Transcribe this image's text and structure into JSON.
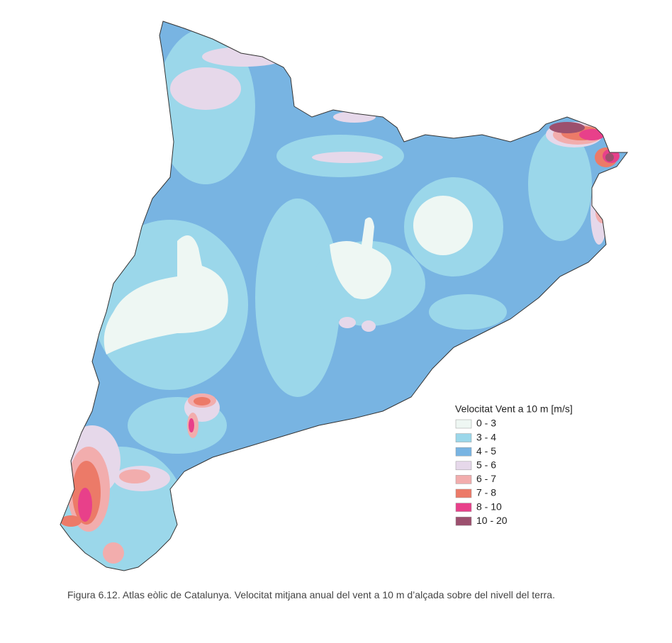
{
  "legend": {
    "title": "Velocitat Vent a 10 m [m/s]",
    "items": [
      {
        "label": "0 - 3",
        "color": "#eef7f3"
      },
      {
        "label": "3 - 4",
        "color": "#9bd7ea"
      },
      {
        "label": "4 - 5",
        "color": "#78b4e2"
      },
      {
        "label": "5 - 6",
        "color": "#e6d8ea"
      },
      {
        "label": "6 - 7",
        "color": "#f2adad"
      },
      {
        "label": "7 - 8",
        "color": "#ec7a68"
      },
      {
        "label": "8 - 10",
        "color": "#e8408a"
      },
      {
        "label": "10 - 20",
        "color": "#9c506e"
      }
    ]
  },
  "caption": "Figura  6.12. Atlas eòlic de Catalunya. Velocitat mitjana anual del vent a 10 m d’alçada sobre del nivell del terra."
}
